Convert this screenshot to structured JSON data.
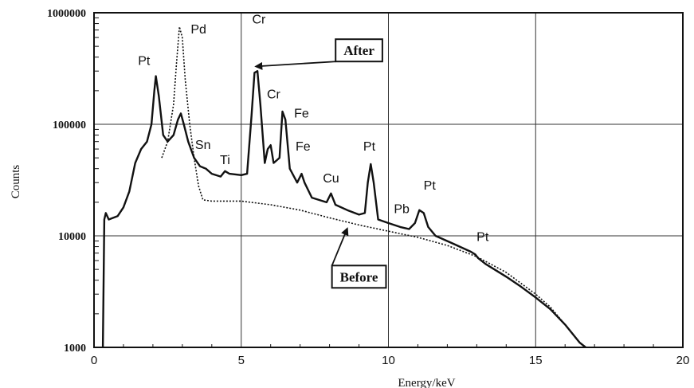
{
  "chart_data": {
    "type": "line",
    "title": "",
    "xlabel": "Energy/keV",
    "ylabel": "Counts",
    "xlim": [
      0,
      20
    ],
    "ylim": [
      1000,
      1000000
    ],
    "yscale": "log",
    "grid": true,
    "x_ticks": [
      "0",
      "5",
      "10",
      "15",
      "20"
    ],
    "y_ticks": [
      "1000",
      "10000",
      "100000",
      "1000000"
    ],
    "series": [
      {
        "name": "After",
        "style": "solid",
        "points": [
          [
            0.3,
            1000
          ],
          [
            0.35,
            14000
          ],
          [
            0.4,
            16000
          ],
          [
            0.5,
            14000
          ],
          [
            0.8,
            15000
          ],
          [
            1.0,
            18000
          ],
          [
            1.2,
            25000
          ],
          [
            1.4,
            45000
          ],
          [
            1.6,
            60000
          ],
          [
            1.8,
            70000
          ],
          [
            1.95,
            100000
          ],
          [
            2.05,
            200000
          ],
          [
            2.1,
            270000
          ],
          [
            2.2,
            180000
          ],
          [
            2.35,
            80000
          ],
          [
            2.5,
            70000
          ],
          [
            2.7,
            80000
          ],
          [
            2.85,
            110000
          ],
          [
            2.95,
            125000
          ],
          [
            3.05,
            100000
          ],
          [
            3.2,
            70000
          ],
          [
            3.4,
            50000
          ],
          [
            3.6,
            42000
          ],
          [
            3.8,
            40000
          ],
          [
            4.0,
            36000
          ],
          [
            4.3,
            34000
          ],
          [
            4.45,
            38000
          ],
          [
            4.6,
            36000
          ],
          [
            5.0,
            35000
          ],
          [
            5.2,
            36000
          ],
          [
            5.35,
            120000
          ],
          [
            5.45,
            290000
          ],
          [
            5.55,
            300000
          ],
          [
            5.65,
            150000
          ],
          [
            5.8,
            45000
          ],
          [
            5.9,
            60000
          ],
          [
            6.0,
            65000
          ],
          [
            6.1,
            45000
          ],
          [
            6.3,
            50000
          ],
          [
            6.4,
            130000
          ],
          [
            6.5,
            110000
          ],
          [
            6.65,
            40000
          ],
          [
            6.9,
            30000
          ],
          [
            7.05,
            36000
          ],
          [
            7.15,
            30000
          ],
          [
            7.4,
            22000
          ],
          [
            7.9,
            20000
          ],
          [
            8.05,
            24000
          ],
          [
            8.2,
            19000
          ],
          [
            8.6,
            17000
          ],
          [
            9.0,
            15500
          ],
          [
            9.2,
            16000
          ],
          [
            9.3,
            30000
          ],
          [
            9.4,
            44000
          ],
          [
            9.5,
            30000
          ],
          [
            9.65,
            14000
          ],
          [
            10.0,
            13000
          ],
          [
            10.4,
            12000
          ],
          [
            10.7,
            11500
          ],
          [
            10.9,
            13000
          ],
          [
            11.05,
            17000
          ],
          [
            11.2,
            16000
          ],
          [
            11.35,
            12000
          ],
          [
            11.6,
            10000
          ],
          [
            12.2,
            8500
          ],
          [
            12.8,
            7200
          ],
          [
            12.95,
            6800
          ],
          [
            13.05,
            6300
          ],
          [
            13.3,
            5600
          ],
          [
            14.0,
            4300
          ],
          [
            14.5,
            3500
          ],
          [
            15.0,
            2800
          ],
          [
            15.5,
            2200
          ],
          [
            16.0,
            1600
          ],
          [
            16.5,
            1100
          ],
          [
            16.7,
            1000
          ]
        ]
      },
      {
        "name": "Before",
        "style": "dotted",
        "points": [
          [
            2.3,
            50000
          ],
          [
            2.5,
            70000
          ],
          [
            2.7,
            150000
          ],
          [
            2.8,
            350000
          ],
          [
            2.9,
            750000
          ],
          [
            3.0,
            600000
          ],
          [
            3.1,
            250000
          ],
          [
            3.25,
            100000
          ],
          [
            3.4,
            50000
          ],
          [
            3.55,
            28000
          ],
          [
            3.7,
            21000
          ],
          [
            4.0,
            20500
          ],
          [
            5.0,
            20500
          ],
          [
            6.0,
            19000
          ],
          [
            7.0,
            17000
          ],
          [
            8.0,
            14500
          ],
          [
            9.0,
            12500
          ],
          [
            10.0,
            11000
          ],
          [
            11.0,
            9700
          ],
          [
            12.0,
            8200
          ],
          [
            13.0,
            6500
          ],
          [
            14.0,
            4700
          ],
          [
            15.0,
            3000
          ],
          [
            15.5,
            2300
          ],
          [
            16.0,
            1600
          ],
          [
            16.5,
            1100
          ],
          [
            16.7,
            1000
          ]
        ]
      }
    ],
    "peak_labels": [
      {
        "text": "Pt",
        "x": 1.7,
        "y": 340000
      },
      {
        "text": "Pd",
        "x": 3.55,
        "y": 650000
      },
      {
        "text": "Cr",
        "x": 5.6,
        "y": 800000
      },
      {
        "text": "Cr",
        "x": 6.1,
        "y": 170000
      },
      {
        "text": "Fe",
        "x": 7.05,
        "y": 115000
      },
      {
        "text": "Sn",
        "x": 3.7,
        "y": 60000
      },
      {
        "text": "Ti",
        "x": 4.45,
        "y": 44000
      },
      {
        "text": "Fe",
        "x": 7.1,
        "y": 58000
      },
      {
        "text": "Cu",
        "x": 8.05,
        "y": 30000
      },
      {
        "text": "Pt",
        "x": 9.35,
        "y": 58000
      },
      {
        "text": "Pb",
        "x": 10.45,
        "y": 16000
      },
      {
        "text": "Pt",
        "x": 11.4,
        "y": 26000
      },
      {
        "text": "Pt",
        "x": 13.2,
        "y": 9000
      }
    ],
    "callouts": [
      {
        "text": "After",
        "x": 9.0,
        "y": 460000,
        "target_x": 5.5,
        "target_y": 330000
      },
      {
        "text": "Before",
        "x": 9.0,
        "y": 4300,
        "target_x": 8.6,
        "target_y": 11600
      }
    ]
  }
}
